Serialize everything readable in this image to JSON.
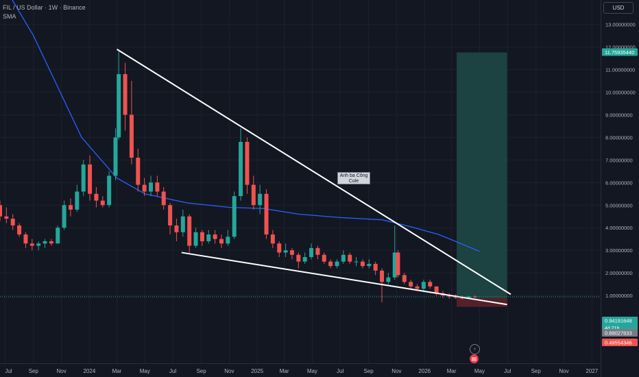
{
  "header": {
    "title": "FIL / US Dollar · 1W · Binance",
    "indicator": "SMA"
  },
  "currency_button": "USD",
  "annotation": {
    "line1": "Anh ba Công",
    "line2": "Cole"
  },
  "icons": {
    "flash": "lightning-icon",
    "news": "news-icon"
  },
  "colors": {
    "background": "#131722",
    "up": "#26a69a",
    "down": "#ef5350",
    "sma": "#2962ff",
    "trendline": "#ffffff",
    "target_zone": "#1f4a47",
    "stop_zone": "#5b2228"
  },
  "chart_data": {
    "type": "candlestick",
    "title": "FIL / US Dollar · 1W · Binance",
    "y_axis": {
      "ticks": [
        1,
        2,
        3,
        4,
        5,
        6,
        7,
        8,
        9,
        10,
        11,
        12,
        13
      ],
      "tick_labels": [
        "1.00000000",
        "2.00000000",
        "3.00000000",
        "4.00000000",
        "5.00000000",
        "6.00000000",
        "7.00000000",
        "8.00000000",
        "9.00000000",
        "10.00000000",
        "11.00000000",
        "12.00000000",
        "13.00000000"
      ],
      "ylim": [
        0,
        14
      ]
    },
    "x_axis": {
      "tick_labels": [
        "Jul",
        "Sep",
        "Nov",
        "2024",
        "Mar",
        "May",
        "Jul",
        "Sep",
        "Nov",
        "2025",
        "Mar",
        "May",
        "Jul",
        "Sep",
        "Nov",
        "2026",
        "Mar",
        "May",
        "Jul",
        "Sep",
        "Nov",
        "2027"
      ],
      "range": [
        "2023-06-20",
        "2027-01-20"
      ]
    },
    "price_labels": [
      {
        "value": 11.7593544,
        "text": "11.75935440",
        "kind": "target"
      },
      {
        "value": 0.94191648,
        "text": "0.94191648",
        "kind": "last",
        "countdown": "4d 21h"
      },
      {
        "value": 0.89027633,
        "text": "0.89027633",
        "kind": "entry"
      },
      {
        "value": 0.49554346,
        "text": "0.49554346",
        "kind": "stop"
      }
    ],
    "series": [
      {
        "type": "candles",
        "points": [
          [
            "2023-06-20",
            5.0,
            5.2,
            4.3,
            4.5
          ],
          [
            "2023-07-04",
            4.5,
            4.9,
            4.2,
            4.4
          ],
          [
            "2023-07-18",
            4.4,
            4.6,
            3.9,
            4.1
          ],
          [
            "2023-08-01",
            4.1,
            4.2,
            3.6,
            3.7
          ],
          [
            "2023-08-15",
            3.7,
            3.8,
            3.1,
            3.3
          ],
          [
            "2023-08-29",
            3.3,
            3.5,
            3.0,
            3.2
          ],
          [
            "2023-09-12",
            3.2,
            3.4,
            3.0,
            3.3
          ],
          [
            "2023-09-26",
            3.3,
            3.5,
            3.1,
            3.4
          ],
          [
            "2023-10-10",
            3.4,
            3.5,
            3.2,
            3.3
          ],
          [
            "2023-10-24",
            3.3,
            4.1,
            3.3,
            4.0
          ],
          [
            "2023-11-07",
            4.0,
            5.2,
            3.9,
            5.0
          ],
          [
            "2023-11-21",
            5.0,
            5.3,
            4.5,
            4.8
          ],
          [
            "2023-12-05",
            4.8,
            5.9,
            4.7,
            5.6
          ],
          [
            "2023-12-19",
            5.6,
            7.0,
            5.4,
            6.8
          ],
          [
            "2024-01-02",
            6.8,
            7.2,
            5.2,
            5.5
          ],
          [
            "2024-01-16",
            5.5,
            5.8,
            4.9,
            5.2
          ],
          [
            "2024-01-30",
            5.2,
            5.4,
            4.9,
            5.0
          ],
          [
            "2024-02-13",
            5.0,
            6.5,
            4.9,
            6.3
          ],
          [
            "2024-02-27",
            6.3,
            8.4,
            6.1,
            8.0
          ],
          [
            "2024-03-05",
            8.0,
            11.8,
            7.9,
            10.8
          ],
          [
            "2024-03-19",
            10.8,
            11.3,
            8.3,
            9.0
          ],
          [
            "2024-04-02",
            9.0,
            10.5,
            6.8,
            7.1
          ],
          [
            "2024-04-16",
            7.1,
            7.5,
            5.6,
            5.9
          ],
          [
            "2024-04-30",
            5.9,
            6.2,
            5.4,
            5.6
          ],
          [
            "2024-05-14",
            5.6,
            6.3,
            5.4,
            6.0
          ],
          [
            "2024-05-28",
            6.0,
            6.3,
            5.4,
            5.6
          ],
          [
            "2024-06-11",
            5.6,
            5.8,
            4.8,
            5.0
          ],
          [
            "2024-06-25",
            5.0,
            5.1,
            3.7,
            4.1
          ],
          [
            "2024-07-09",
            4.1,
            4.4,
            3.4,
            3.8
          ],
          [
            "2024-07-23",
            3.8,
            4.8,
            3.6,
            4.5
          ],
          [
            "2024-08-06",
            4.5,
            4.6,
            2.9,
            3.2
          ],
          [
            "2024-08-20",
            3.2,
            4.0,
            3.1,
            3.8
          ],
          [
            "2024-09-03",
            3.8,
            3.9,
            3.2,
            3.4
          ],
          [
            "2024-09-17",
            3.4,
            3.9,
            3.3,
            3.7
          ],
          [
            "2024-10-01",
            3.7,
            3.9,
            3.3,
            3.5
          ],
          [
            "2024-10-15",
            3.5,
            3.7,
            3.1,
            3.3
          ],
          [
            "2024-10-29",
            3.3,
            3.9,
            3.2,
            3.6
          ],
          [
            "2024-11-12",
            3.6,
            5.6,
            3.5,
            5.4
          ],
          [
            "2024-11-26",
            5.4,
            8.4,
            5.2,
            7.8
          ],
          [
            "2024-12-10",
            7.8,
            8.0,
            5.5,
            5.9
          ],
          [
            "2024-12-24",
            5.9,
            6.3,
            4.8,
            5.0
          ],
          [
            "2025-01-07",
            5.0,
            5.9,
            4.6,
            5.5
          ],
          [
            "2025-01-21",
            5.5,
            5.7,
            3.5,
            3.7
          ],
          [
            "2025-02-04",
            3.7,
            3.9,
            3.1,
            3.3
          ],
          [
            "2025-02-18",
            3.3,
            3.4,
            2.7,
            2.9
          ],
          [
            "2025-03-04",
            2.9,
            3.3,
            2.7,
            3.0
          ],
          [
            "2025-03-18",
            3.0,
            3.1,
            2.6,
            2.8
          ],
          [
            "2025-04-01",
            2.8,
            2.9,
            2.2,
            2.5
          ],
          [
            "2025-04-15",
            2.5,
            2.9,
            2.4,
            2.7
          ],
          [
            "2025-04-29",
            2.7,
            3.3,
            2.6,
            3.1
          ],
          [
            "2025-05-13",
            3.1,
            3.2,
            2.6,
            2.8
          ],
          [
            "2025-05-27",
            2.8,
            2.9,
            2.4,
            2.5
          ],
          [
            "2025-06-10",
            2.5,
            2.6,
            2.2,
            2.3
          ],
          [
            "2025-06-24",
            2.3,
            2.6,
            2.2,
            2.5
          ],
          [
            "2025-07-08",
            2.5,
            3.0,
            2.4,
            2.8
          ],
          [
            "2025-07-22",
            2.8,
            2.9,
            2.4,
            2.5
          ],
          [
            "2025-08-05",
            2.5,
            2.7,
            2.3,
            2.5
          ],
          [
            "2025-08-19",
            2.5,
            2.6,
            2.2,
            2.3
          ],
          [
            "2025-09-02",
            2.3,
            2.6,
            2.2,
            2.4
          ],
          [
            "2025-09-16",
            2.4,
            2.5,
            1.9,
            2.1
          ],
          [
            "2025-09-30",
            2.1,
            2.2,
            0.7,
            1.6
          ],
          [
            "2025-10-14",
            1.6,
            2.0,
            1.5,
            1.8
          ],
          [
            "2025-10-28",
            1.8,
            4.1,
            1.7,
            2.9
          ],
          [
            "2025-11-04",
            2.9,
            3.0,
            1.8,
            1.9
          ],
          [
            "2025-11-18",
            1.9,
            2.0,
            1.5,
            1.6
          ],
          [
            "2025-12-02",
            1.6,
            1.7,
            1.3,
            1.4
          ],
          [
            "2025-12-16",
            1.4,
            1.5,
            1.2,
            1.3
          ],
          [
            "2025-12-30",
            1.3,
            1.7,
            1.2,
            1.6
          ],
          [
            "2026-01-13",
            1.6,
            1.7,
            1.3,
            1.4
          ],
          [
            "2026-01-27",
            1.4,
            1.4,
            1.0,
            1.1
          ],
          [
            "2026-02-10",
            1.1,
            1.2,
            0.9,
            1.0
          ],
          [
            "2026-02-24",
            1.0,
            1.1,
            0.85,
            0.95
          ],
          [
            "2026-03-10",
            0.95,
            1.05,
            0.85,
            0.9
          ],
          [
            "2026-03-24",
            0.9,
            1.0,
            0.82,
            0.88
          ],
          [
            "2026-04-07",
            0.88,
            1.0,
            0.85,
            0.96
          ],
          [
            "2026-04-21",
            0.96,
            1.0,
            0.88,
            0.94
          ]
        ]
      },
      {
        "type": "line",
        "name": "SMA",
        "points": [
          [
            "2023-06-20",
            15.0
          ],
          [
            "2023-09-01",
            12.5
          ],
          [
            "2023-12-15",
            8.0
          ],
          [
            "2024-03-01",
            6.2
          ],
          [
            "2024-05-01",
            5.5
          ],
          [
            "2024-08-01",
            5.1
          ],
          [
            "2024-11-01",
            4.9
          ],
          [
            "2025-01-15",
            4.85
          ],
          [
            "2025-04-01",
            4.6
          ],
          [
            "2025-07-01",
            4.45
          ],
          [
            "2025-10-01",
            4.35
          ],
          [
            "2025-12-01",
            4.05
          ],
          [
            "2026-02-01",
            3.7
          ],
          [
            "2026-03-15",
            3.35
          ],
          [
            "2026-05-01",
            2.95
          ]
        ]
      }
    ],
    "drawings": {
      "upper_trendline": [
        [
          "2024-03-01",
          11.9
        ],
        [
          "2026-07-08",
          1.05
        ]
      ],
      "lower_trendline": [
        [
          "2024-07-20",
          2.9
        ],
        [
          "2026-06-30",
          0.6
        ]
      ],
      "position": {
        "start": "2026-03-12",
        "end": "2026-06-30",
        "target": 11.7593544,
        "entry": 0.89027633,
        "stop": 0.49554346
      }
    }
  }
}
